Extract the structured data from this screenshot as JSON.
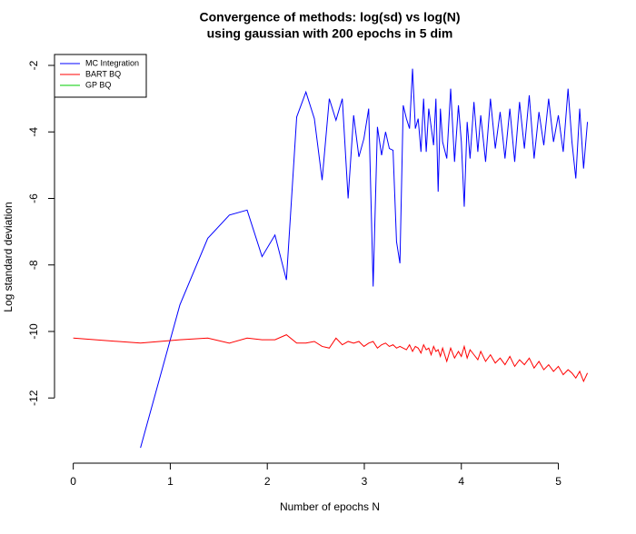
{
  "chart_data": {
    "type": "line",
    "title": "Convergence of methods: log(sd) vs log(N)",
    "subtitle": "using gaussian with 200 epochs in 5 dim",
    "x_label": "Number of epochs N",
    "y_label": "Log standard deviation",
    "x": [
      0,
      0.693,
      1.099,
      1.386,
      1.609,
      1.792,
      1.946,
      2.079,
      2.197,
      2.303,
      2.398,
      2.485,
      2.565,
      2.639,
      2.708,
      2.773,
      2.833,
      2.89,
      2.944,
      2.996,
      3.045,
      3.091,
      3.135,
      3.178,
      3.219,
      3.258,
      3.296,
      3.332,
      3.367,
      3.401,
      3.434,
      3.466,
      3.497,
      3.526,
      3.555,
      3.584,
      3.611,
      3.638,
      3.664,
      3.689,
      3.714,
      3.738,
      3.761,
      3.784,
      3.807,
      3.85,
      3.89,
      3.93,
      3.97,
      4.0,
      4.03,
      4.06,
      4.09,
      4.13,
      4.17,
      4.2,
      4.25,
      4.3,
      4.35,
      4.4,
      4.45,
      4.5,
      4.55,
      4.6,
      4.65,
      4.7,
      4.75,
      4.8,
      4.85,
      4.9,
      4.95,
      5.0,
      5.05,
      5.1,
      5.14,
      5.18,
      5.22,
      5.26,
      5.3
    ],
    "series": [
      {
        "name": "MC Integration",
        "color": "#0000ff",
        "values": [
          null,
          -13.5,
          -9.2,
          -7.2,
          -6.5,
          -6.35,
          -7.75,
          -7.1,
          -8.45,
          -3.55,
          -2.8,
          -3.6,
          -5.45,
          -3.0,
          -3.65,
          -3.0,
          -6.0,
          -3.5,
          -4.75,
          -4.2,
          -3.3,
          -8.65,
          -3.85,
          -4.7,
          -4.0,
          -4.5,
          -4.55,
          -7.3,
          -7.95,
          -3.2,
          -3.6,
          -3.9,
          -2.1,
          -3.9,
          -3.6,
          -4.6,
          -3.0,
          -4.6,
          -3.3,
          -3.85,
          -4.4,
          -3.0,
          -5.8,
          -3.3,
          -4.3,
          -4.8,
          -2.7,
          -4.9,
          -3.2,
          -4.3,
          -6.25,
          -3.7,
          -4.8,
          -3.1,
          -4.6,
          -3.5,
          -4.9,
          -3.0,
          -4.5,
          -3.4,
          -4.8,
          -3.3,
          -4.9,
          -3.1,
          -4.5,
          -2.9,
          -4.8,
          -3.4,
          -4.4,
          -3.0,
          -4.3,
          -3.5,
          -4.6,
          -2.7,
          -4.3,
          -5.4,
          -3.3,
          -5.1,
          -3.7
        ]
      },
      {
        "name": "BART BQ",
        "color": "#ff0000",
        "values": [
          -10.2,
          -10.35,
          -10.25,
          -10.2,
          -10.35,
          -10.2,
          -10.25,
          -10.25,
          -10.1,
          -10.35,
          -10.35,
          -10.3,
          -10.45,
          -10.5,
          -10.2,
          -10.4,
          -10.3,
          -10.35,
          -10.3,
          -10.45,
          -10.35,
          -10.3,
          -10.5,
          -10.4,
          -10.35,
          -10.45,
          -10.4,
          -10.5,
          -10.45,
          -10.5,
          -10.55,
          -10.4,
          -10.6,
          -10.45,
          -10.5,
          -10.65,
          -10.4,
          -10.55,
          -10.5,
          -10.7,
          -10.45,
          -10.6,
          -10.55,
          -10.75,
          -10.5,
          -10.9,
          -10.5,
          -10.8,
          -10.6,
          -10.75,
          -10.45,
          -10.8,
          -10.55,
          -10.7,
          -10.85,
          -10.6,
          -10.9,
          -10.7,
          -10.95,
          -10.8,
          -11.0,
          -10.75,
          -11.05,
          -10.85,
          -11.0,
          -10.8,
          -11.1,
          -10.9,
          -11.15,
          -11.0,
          -11.2,
          -11.05,
          -11.3,
          -11.15,
          -11.25,
          -11.4,
          -11.2,
          -11.5,
          -11.25
        ]
      },
      {
        "name": "GP BQ",
        "color": "#00cc00",
        "values": [
          null,
          null,
          null,
          null,
          null,
          null,
          null,
          null,
          null,
          null,
          null,
          null,
          null,
          null,
          null,
          null,
          null,
          null,
          null,
          null,
          null,
          null,
          null,
          null,
          null,
          null,
          null,
          null,
          null,
          null,
          null,
          null,
          null,
          null,
          null,
          null,
          null,
          null,
          null,
          null,
          null,
          null,
          null,
          null,
          null,
          null,
          null,
          null,
          null,
          null,
          null,
          null,
          null,
          null,
          null,
          null,
          null,
          null,
          null,
          null,
          null,
          null,
          null,
          null,
          null,
          null,
          null,
          null,
          null,
          null,
          null,
          null,
          null,
          null,
          null,
          null,
          null,
          null,
          null
        ]
      }
    ],
    "xlim": [
      -0.212,
      5.51
    ],
    "ylim": [
      -13.96,
      -1.59
    ],
    "xticks": [
      0,
      1,
      2,
      3,
      4,
      5
    ],
    "yticks": [
      -12,
      -10,
      -8,
      -6,
      -4,
      -2
    ],
    "legend": "top-left"
  }
}
